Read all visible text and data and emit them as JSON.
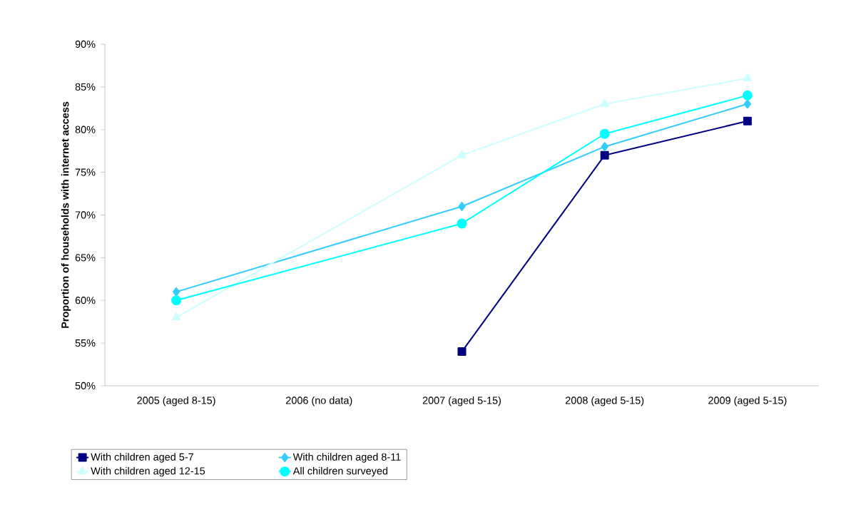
{
  "chart_data": {
    "type": "line",
    "ylabel": "Proportion of households with internet access",
    "categories": [
      "2005 (aged 8-15)",
      "2006 (no data)",
      "2007 (aged 5-15)",
      "2008 (aged 5-15)",
      "2009 (aged 5-15)"
    ],
    "series": [
      {
        "name": "With children aged 5-7",
        "color": "#000080",
        "marker": "square",
        "values": [
          null,
          null,
          54,
          77,
          81
        ]
      },
      {
        "name": "With children aged 8-11",
        "color": "#33ccff",
        "marker": "diamond",
        "values": [
          61,
          null,
          71,
          78,
          83
        ]
      },
      {
        "name": "With children aged 12-15",
        "color": "#ccffff",
        "marker": "triangle",
        "values": [
          58,
          null,
          77,
          83,
          86
        ]
      },
      {
        "name": "All children surveyed",
        "color": "#00ffff",
        "marker": "circle",
        "values": [
          60,
          null,
          69,
          79.5,
          84
        ]
      }
    ],
    "ylim": [
      50,
      90
    ],
    "yticks": [
      {
        "value": 50,
        "label": "50%"
      },
      {
        "value": 55,
        "label": "55%"
      },
      {
        "value": 60,
        "label": "60%"
      },
      {
        "value": 65,
        "label": "65%"
      },
      {
        "value": 70,
        "label": "70%"
      },
      {
        "value": 75,
        "label": "75%"
      },
      {
        "value": 80,
        "label": "80%"
      },
      {
        "value": 85,
        "label": "85%"
      },
      {
        "value": 90,
        "label": "90%"
      }
    ],
    "grid": false,
    "legend": "bottom",
    "line_style": "solid"
  }
}
